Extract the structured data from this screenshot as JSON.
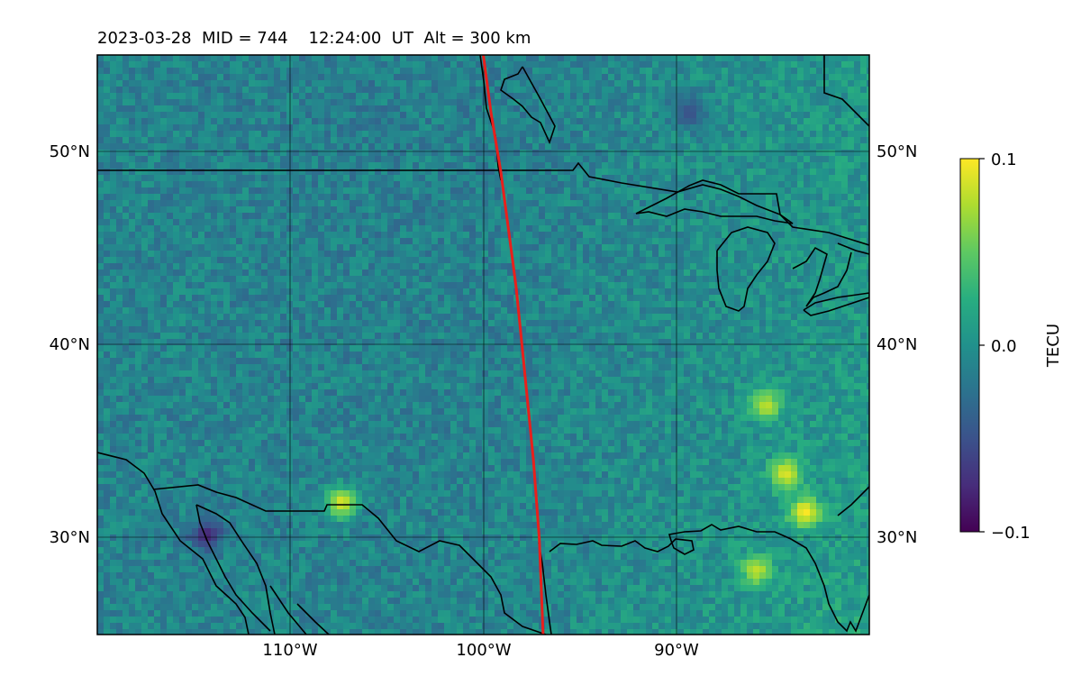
{
  "title": "2023-03-28  MID = 744    12:24:00  UT  Alt = 300 km",
  "lat_labels": [
    "50°N",
    "40°N",
    "30°N"
  ],
  "lon_labels": [
    "110°W",
    "100°W",
    "90°W"
  ],
  "colorbar": {
    "label": "TECU",
    "ticks": [
      "0.1",
      "0.0",
      "−0.1"
    ],
    "colormap": "viridis",
    "range": [
      -0.1,
      0.1
    ]
  },
  "map": {
    "lat_range": [
      25,
      55
    ],
    "lon_range": [
      -120,
      -80
    ],
    "grid": true,
    "terminator_color": "#e8201c"
  },
  "chart_data": {
    "type": "heatmap",
    "title": "2023-03-28  MID = 744    12:24:00  UT  Alt = 300 km",
    "x_ticks": [
      -110,
      -100,
      -90
    ],
    "y_ticks": [
      30,
      40,
      50
    ],
    "xlim": [
      -120,
      -80
    ],
    "ylim": [
      25,
      55
    ],
    "colorbar_label": "TECU",
    "vmin": -0.1,
    "vmax": 0.1,
    "terminator_line": {
      "lon": [
        -100.0,
        -99.6,
        -99.1,
        -98.7,
        -98.3,
        -98.0,
        -97.7,
        -97.4,
        -97.1,
        -96.9
      ],
      "lat": [
        55,
        52,
        49,
        46,
        43,
        40,
        37,
        34,
        30,
        25
      ]
    },
    "hotspots": [
      {
        "lon": -83.5,
        "lat": 31.5,
        "value": 0.1
      },
      {
        "lon": -84.5,
        "lat": 33.5,
        "value": 0.09
      },
      {
        "lon": -85.5,
        "lat": 37.0,
        "value": 0.08
      },
      {
        "lon": -107.5,
        "lat": 32.0,
        "value": 0.09
      },
      {
        "lon": -114.5,
        "lat": 30.3,
        "value": -0.08
      },
      {
        "lon": -89.5,
        "lat": 52.2,
        "value": -0.05
      },
      {
        "lon": -86.0,
        "lat": 28.5,
        "value": 0.08
      }
    ]
  }
}
